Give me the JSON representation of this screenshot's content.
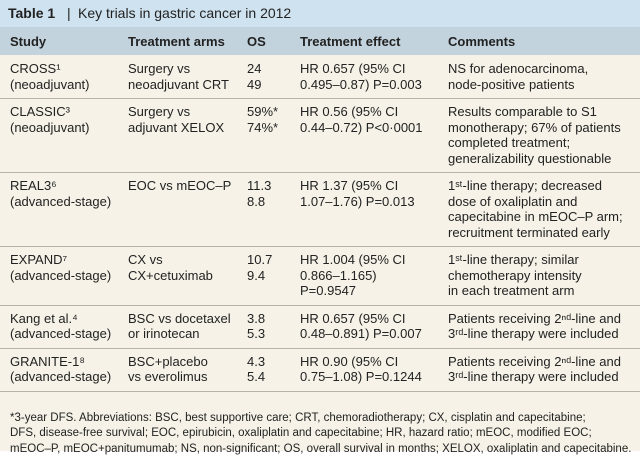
{
  "title": {
    "number": "Table 1",
    "separator": "|",
    "text": "Key trials in gastric cancer in 2012"
  },
  "table": {
    "header": [
      "Study",
      "Treatment arms",
      "OS",
      "Treatment effect",
      "Comments"
    ],
    "rows": [
      [
        [
          "CROSS¹",
          "(neoadjuvant)"
        ],
        [
          "Surgery vs",
          "neoadjuvant CRT"
        ],
        [
          "24",
          "49"
        ],
        [
          "HR 0.657 (95% CI",
          "0.495–0.87) P=0.003"
        ],
        [
          "NS for adenocarcinoma,",
          "node-positive patients"
        ]
      ],
      [
        [
          "CLASSIC³",
          "(neoadjuvant)"
        ],
        [
          "Surgery vs",
          "adjuvant XELOX"
        ],
        [
          "59%*",
          "74%*"
        ],
        [
          "HR 0.56 (95% CI",
          "0.44–0.72) P<0·0001"
        ],
        [
          "Results comparable to S1",
          "monotherapy; 67% of patients",
          "completed treatment;",
          "generalizability questionable"
        ]
      ],
      [
        [
          "REAL3⁶",
          "(advanced-stage)"
        ],
        [
          "EOC vs mEOC–P"
        ],
        [
          "11.3",
          "8.8"
        ],
        [
          "HR 1.37 (95% CI",
          "1.07–1.76) P=0.013"
        ],
        [
          "1ˢᵗ-line therapy; decreased",
          "dose of oxaliplatin and",
          "capecitabine in mEOC–P arm;",
          "recruitment terminated early"
        ]
      ],
      [
        [
          "EXPAND⁷",
          "(advanced-stage)"
        ],
        [
          "CX vs",
          "CX+cetuximab"
        ],
        [
          "10.7",
          "9.4"
        ],
        [
          "HR 1.004 (95% CI",
          "0.866–1.165)",
          "P=0.9547"
        ],
        [
          "1ˢᵗ-line therapy; similar",
          "chemotherapy intensity",
          "in each treatment arm"
        ]
      ],
      [
        [
          "Kang et al.⁴",
          "(advanced-stage)"
        ],
        [
          "BSC vs docetaxel",
          "or irinotecan"
        ],
        [
          "3.8",
          "5.3"
        ],
        [
          "HR 0.657 (95% CI",
          "0.48–0.891) P=0.007"
        ],
        [
          "Patients receiving 2ⁿᵈ-line and",
          "3ʳᵈ-line therapy were included"
        ]
      ],
      [
        [
          "GRANITE-1⁸",
          "(advanced-stage)"
        ],
        [
          "BSC+placebo",
          "vs everolimus"
        ],
        [
          "4.3",
          "5.4"
        ],
        [
          "HR 0.90 (95% CI",
          "0.75–1.08) P=0.1244"
        ],
        [
          "Patients receiving 2ⁿᵈ-line and",
          "3ʳᵈ-line therapy were included"
        ]
      ]
    ]
  },
  "footnote": [
    "*3-year DFS. Abbreviations: BSC, best supportive care; CRT, chemoradiotherapy; CX, cisplatin and capecitabine;",
    "DFS, disease-free survival; EOC, epirubicin, oxaliplatin and capecitabine; HR, hazard ratio; mEOC, modified EOC;",
    "mEOC–P, mEOC+panitumumab; NS, non-significant; OS, overall survival in months; XELOX, oxaliplatin and capecitabine."
  ]
}
